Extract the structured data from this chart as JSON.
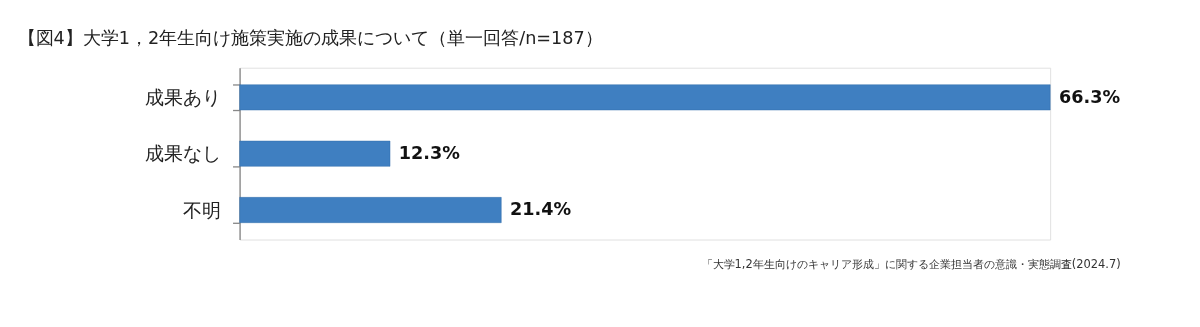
{
  "chart_data": {
    "type": "bar",
    "orientation": "horizontal",
    "title": "【図4】大学1，2年生向け施策実施の成果について（単一回答/n=187）",
    "categories": [
      "成果あり",
      "成果なし",
      "不明"
    ],
    "values": [
      66.3,
      12.3,
      21.4
    ],
    "value_labels": [
      "66.3%",
      "12.3%",
      "21.4%"
    ],
    "color": "#3f7fc1",
    "annotations": [
      "「大学1,2年生向けのキャリア形成」に関する企業担当者の意識・実態調査(2024.7)"
    ],
    "grid": false
  }
}
